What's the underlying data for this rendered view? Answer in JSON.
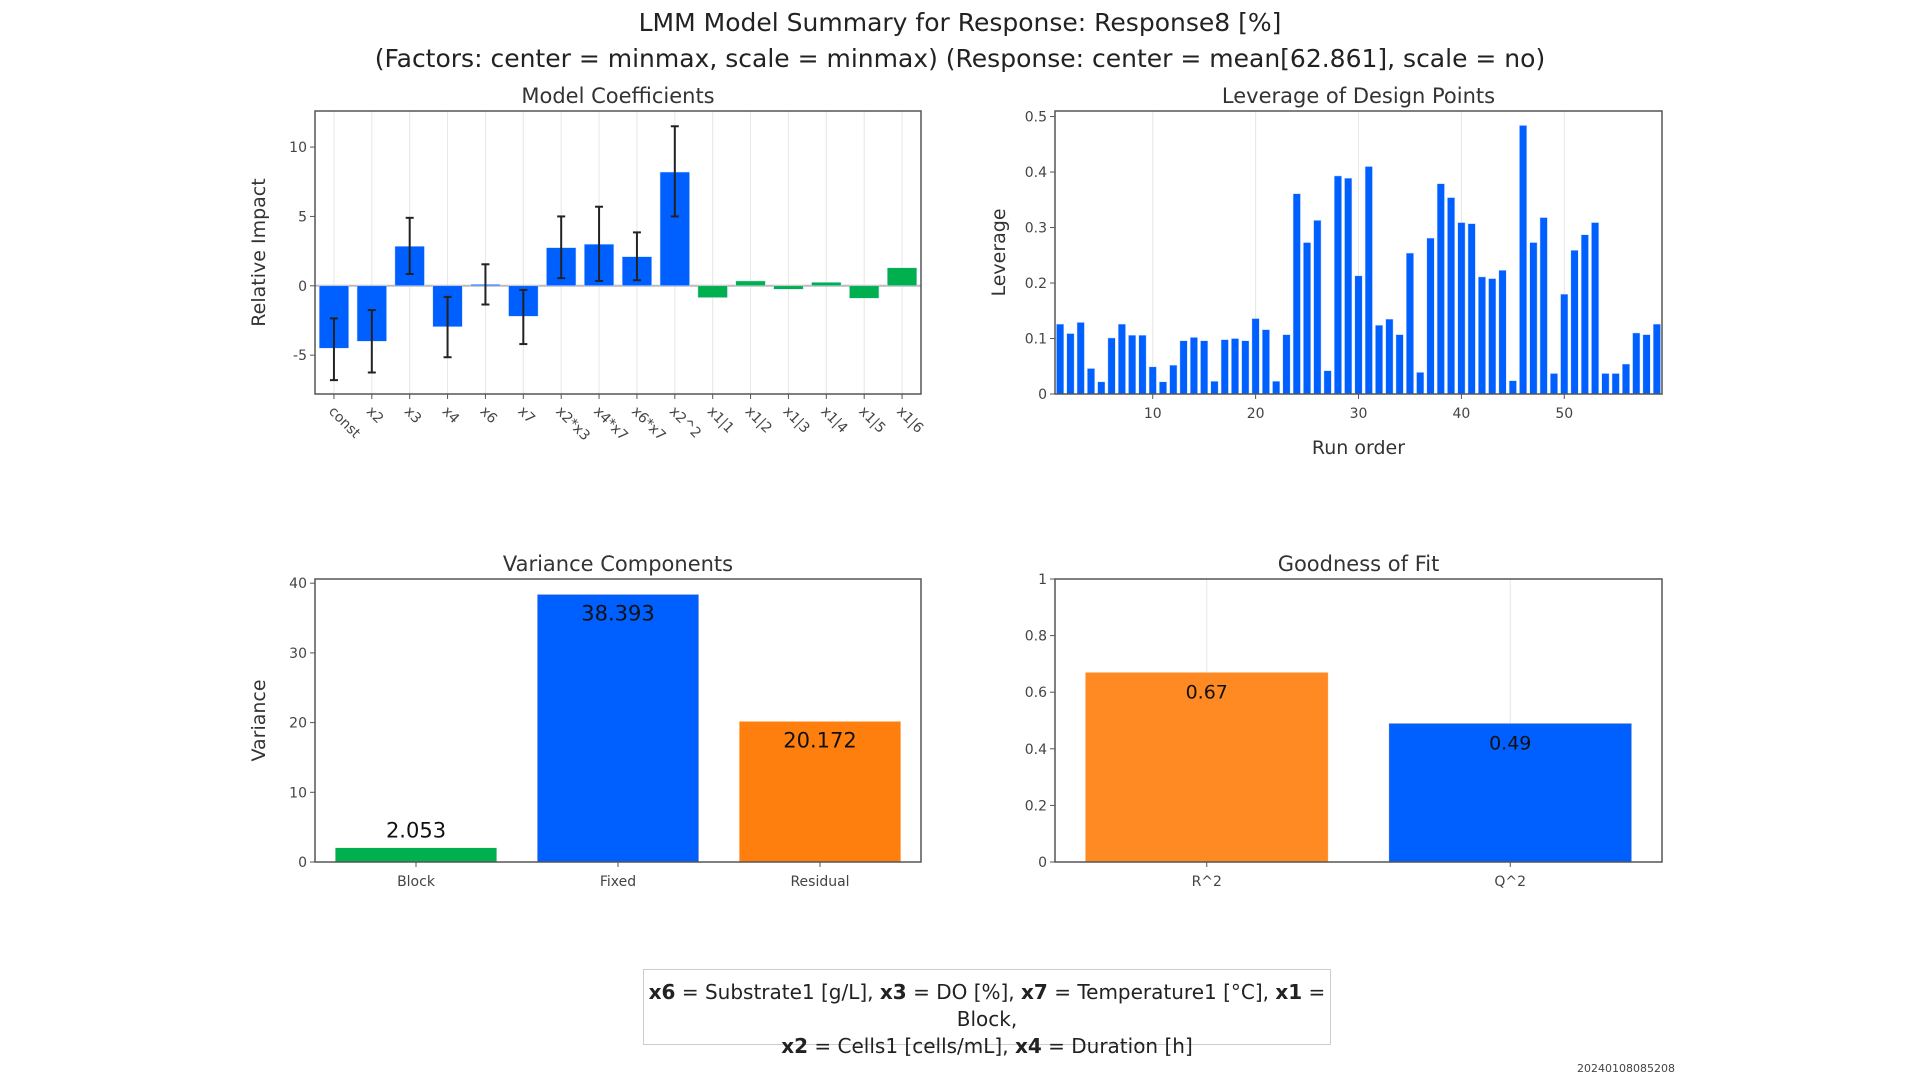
{
  "header": {
    "title": "LMM Model Summary for Response: Response8 [%]",
    "subtitle": "(Factors: center = minmax, scale = minmax)  (Response: center = mean[62.861], scale = no)"
  },
  "colors": {
    "blue": "#005fff",
    "green": "#00b04f",
    "orange": "#ff7f0e",
    "orange_light": "#ff8a24",
    "error_bar": "#222222"
  },
  "chart_data": [
    {
      "type": "bar",
      "title": "Model Coefficients",
      "xlabel": "",
      "ylabel": "Relative Impact",
      "ylim": [
        -7.8,
        12.6
      ],
      "yticks": [
        -5,
        0,
        5,
        10
      ],
      "grid": "vertical",
      "categories": [
        "const",
        "x2",
        "x3",
        "x4",
        "x6",
        "x7",
        "x2*x3",
        "x4*x7",
        "x6*x7",
        "x2^2",
        "x1|1",
        "x1|2",
        "x1|3",
        "x1|4",
        "x1|5",
        "x1|6"
      ],
      "values": [
        -4.5,
        -4.0,
        2.85,
        -2.95,
        0.1,
        -2.2,
        2.75,
        3.0,
        2.1,
        8.2,
        -0.85,
        0.35,
        -0.25,
        0.25,
        -0.9,
        1.3
      ],
      "error_low": [
        -6.8,
        -6.25,
        0.85,
        -5.15,
        -1.35,
        -4.2,
        0.55,
        0.35,
        0.4,
        5.0,
        null,
        null,
        null,
        null,
        null,
        null
      ],
      "error_high": [
        -2.35,
        -1.75,
        4.9,
        -0.8,
        1.55,
        -0.3,
        5.0,
        5.7,
        3.85,
        11.5,
        null,
        null,
        null,
        null,
        null,
        null
      ],
      "bar_colors": [
        "blue",
        "blue",
        "blue",
        "blue",
        "blue",
        "blue",
        "blue",
        "blue",
        "blue",
        "blue",
        "green",
        "green",
        "green",
        "green",
        "green",
        "green"
      ]
    },
    {
      "type": "bar",
      "title": "Leverage of Design Points",
      "xlabel": "Run order",
      "ylabel": "Leverage",
      "xlim": [
        0.5,
        59.5
      ],
      "ylim": [
        0,
        0.51
      ],
      "xticks": [
        10,
        20,
        30,
        40,
        50
      ],
      "yticks": [
        0,
        0.1,
        0.2,
        0.3,
        0.4,
        0.5
      ],
      "grid": "vertical",
      "x": [
        1,
        2,
        3,
        4,
        5,
        6,
        7,
        8,
        9,
        10,
        11,
        12,
        13,
        14,
        15,
        16,
        17,
        18,
        19,
        20,
        21,
        22,
        23,
        24,
        25,
        26,
        27,
        28,
        29,
        30,
        31,
        32,
        33,
        34,
        35,
        36,
        37,
        38,
        39,
        40,
        41,
        42,
        43,
        44,
        45,
        46,
        47,
        48,
        49,
        50,
        51,
        52,
        53,
        54,
        55,
        56,
        57,
        58,
        59
      ],
      "values": [
        0.126,
        0.109,
        0.129,
        0.046,
        0.022,
        0.101,
        0.126,
        0.106,
        0.106,
        0.049,
        0.022,
        0.052,
        0.096,
        0.102,
        0.096,
        0.023,
        0.098,
        0.1,
        0.096,
        0.136,
        0.116,
        0.023,
        0.107,
        0.361,
        0.273,
        0.313,
        0.042,
        0.393,
        0.389,
        0.213,
        0.41,
        0.124,
        0.135,
        0.107,
        0.254,
        0.039,
        0.281,
        0.379,
        0.354,
        0.309,
        0.307,
        0.211,
        0.208,
        0.223,
        0.024,
        0.484,
        0.273,
        0.318,
        0.037,
        0.18,
        0.259,
        0.287,
        0.309,
        0.037,
        0.037,
        0.054,
        0.11,
        0.107,
        0.126
      ]
    },
    {
      "type": "bar",
      "title": "Variance Components",
      "xlabel": "",
      "ylabel": "Variance",
      "ylim": [
        0,
        40.6
      ],
      "yticks": [
        0,
        10,
        20,
        30,
        40
      ],
      "categories": [
        "Block",
        "Fixed",
        "Residual"
      ],
      "values": [
        2.053,
        38.393,
        20.172
      ],
      "labels": [
        "2.053",
        "38.393",
        "20.172"
      ],
      "label_position": [
        "outside",
        "inside",
        "inside"
      ],
      "bar_colors": [
        "green",
        "blue",
        "orange"
      ]
    },
    {
      "type": "bar",
      "title": "Goodness of Fit",
      "xlabel": "",
      "ylabel": "",
      "ylim": [
        0,
        1
      ],
      "yticks": [
        0,
        0.2,
        0.4,
        0.6,
        0.8,
        1
      ],
      "grid": "vertical",
      "categories": [
        "R^2",
        "Q^2"
      ],
      "values": [
        0.67,
        0.49
      ],
      "labels": [
        "0.67",
        "0.49"
      ],
      "bar_colors": [
        "orange_light",
        "blue"
      ]
    }
  ],
  "legend": {
    "line1": [
      {
        "key": "x6",
        "text": " = Substrate1 [g/L], "
      },
      {
        "key": "x3",
        "text": " = DO [%], "
      },
      {
        "key": "x7",
        "text": " = Temperature1 [°C], "
      },
      {
        "key": "x1",
        "text": " = Block,"
      }
    ],
    "line2": [
      {
        "key": "x2",
        "text": " = Cells1 [cells/mL], "
      },
      {
        "key": "x4",
        "text": " = Duration [h]"
      }
    ]
  },
  "timestamp": "20240108085208"
}
